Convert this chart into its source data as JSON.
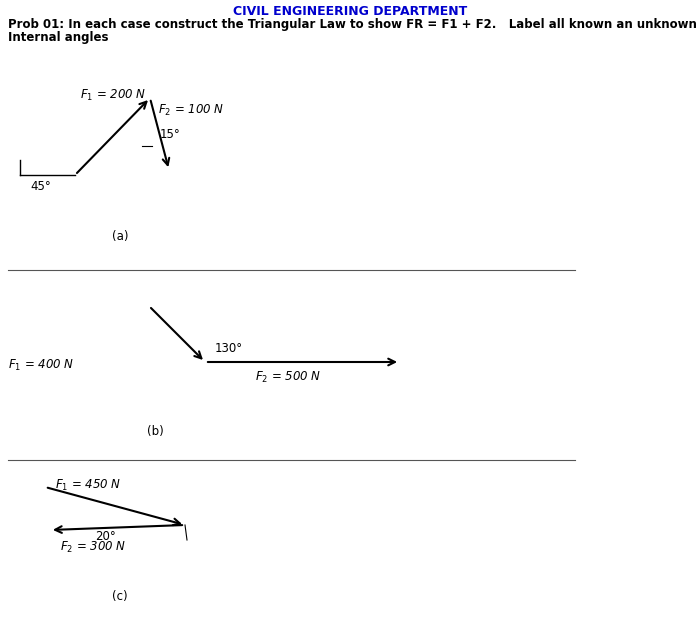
{
  "title_main": "CIVIL ENGINEERING DEPARTMENT",
  "title_main_color": "#0000CD",
  "prob_line1": "Prob 01: In each case construct the Triangular Law to show FR = F1 + F2.   Label all known an unknown sides and",
  "prob_line2": "Internal angles",
  "bg_color": "#ffffff",
  "section_a": {
    "label": "(a)",
    "F1_label": "$F_1$ = 200 N",
    "F2_label": "$F_2$ = 100 N",
    "angle1_label": "45°",
    "angle2_label": "15°"
  },
  "section_b": {
    "label": "(b)",
    "F1_label": "$F_1$ = 400 N",
    "F2_label": "$F_2$ = 500 N",
    "angle_label": "130°"
  },
  "section_c": {
    "label": "(c)",
    "F1_label": "$F_1$ = 450 N",
    "F2_label": "$F_2$ = 300 N",
    "angle_label": "20°"
  },
  "line_color": "#000000",
  "text_color": "#000000",
  "sep_color": "#555555",
  "font_size": 8.5,
  "label_font_size": 9
}
